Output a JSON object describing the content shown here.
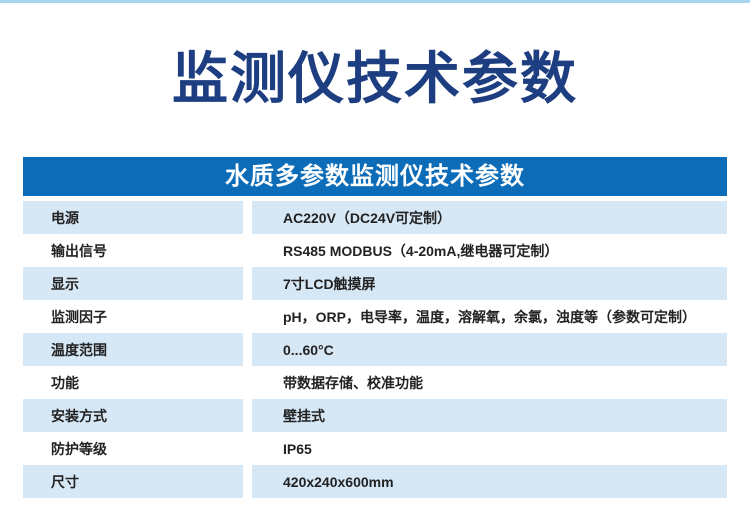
{
  "page": {
    "title": "监测仪技术参数"
  },
  "colors": {
    "top_strip": "#a9d4f2",
    "title_navy": "#1d3e80",
    "header_blue": "#0c6cb8",
    "header_text": "#ffffff",
    "row_shade": "#d6e7f5",
    "text_dark": "#222222"
  },
  "table": {
    "header": "水质多参数监测仪技术参数",
    "rows": [
      {
        "label": "电源",
        "value": "AC220V（DC24V可定制）"
      },
      {
        "label": "输出信号",
        "value": "RS485 MODBUS（4-20mA,继电器可定制）"
      },
      {
        "label": "显示",
        "value": "7寸LCD触摸屏"
      },
      {
        "label": "监测因子",
        "value": "pH，ORP，电导率，温度，溶解氧，余氯，浊度等（参数可定制）"
      },
      {
        "label": "温度范围",
        "value": "0...60°C"
      },
      {
        "label": "功能",
        "value": "带数据存储、校准功能"
      },
      {
        "label": "安装方式",
        "value": "壁挂式"
      },
      {
        "label": "防护等级",
        "value": "IP65"
      },
      {
        "label": "尺寸",
        "value": "420x240x600mm"
      }
    ]
  }
}
